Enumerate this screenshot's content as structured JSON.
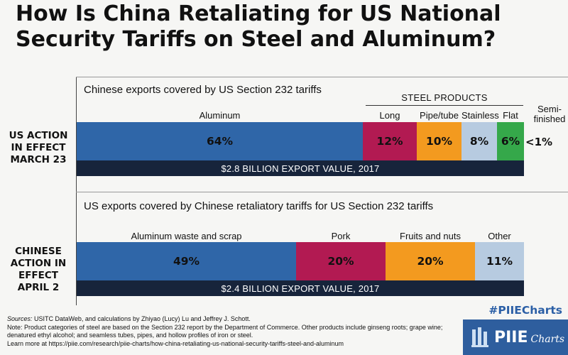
{
  "title": {
    "line1": "How Is China Retaliating for US National",
    "line2": "Security Tariffs on Steel and Aluminum?"
  },
  "chart_data": [
    {
      "type": "bar",
      "orientation": "horizontal-stacked",
      "title": "Chinese exports covered by US Section 232 tariffs",
      "row_label": "US ACTION IN EFFECT MARCH 23",
      "group_label": "STEEL PRODUCTS",
      "categories": [
        "Aluminum",
        "Long",
        "Pipe/tube",
        "Stainless",
        "Flat",
        "Semi-finished"
      ],
      "values": [
        64,
        12,
        10,
        8,
        6,
        0.5
      ],
      "value_labels": [
        "64%",
        "12%",
        "10%",
        "8%",
        "6%",
        "<1%"
      ],
      "colors": [
        "#2f66a8",
        "#b21a52",
        "#f39a1f",
        "#b7cbe0",
        "#35a84a",
        "#f6f6f4"
      ],
      "total_label": "$2.8 BILLION EXPORT VALUE, 2017"
    },
    {
      "type": "bar",
      "orientation": "horizontal-stacked",
      "title": "US exports covered by Chinese retaliatory tariffs for US Section 232 tariffs",
      "row_label": "CHINESE ACTION IN EFFECT APRIL 2",
      "categories": [
        "Aluminum waste and scrap",
        "Pork",
        "Fruits and nuts",
        "Other"
      ],
      "values": [
        49,
        20,
        20,
        11
      ],
      "value_labels": [
        "49%",
        "20%",
        "20%",
        "11%"
      ],
      "colors": [
        "#2f66a8",
        "#b21a52",
        "#f39a1f",
        "#b7cbe0"
      ],
      "total_label": "$2.4 BILLION EXPORT VALUE, 2017"
    }
  ],
  "chart1_rowlabel": [
    "US ACTION",
    "IN EFFECT",
    "MARCH 23"
  ],
  "chart2_rowlabel": [
    "CHINESE",
    "ACTION IN",
    "EFFECT",
    "APRIL 2"
  ],
  "semi_label": [
    "Semi-",
    "finished"
  ],
  "footnote": {
    "sources_label": "Sources:",
    "sources": "USITC DataWeb, and calculations by Zhiyao (Lucy) Lu and Jeffrey J. Schott.",
    "note": "Note: Product categories of steel are based on the Section 232 report by the Department of Commerce. Other products include ginseng roots; grape wine; denatured ethyl alcohol; and seamless tubes, pipes, and hollow profiles of iron or steel.",
    "learn": "Learn more at https://piie.com/research/piie-charts/how-china-retaliating-us-national-security-tariffs-steel-and-aluminum"
  },
  "hashtag": "#PIIECharts",
  "logo": {
    "name": "PIIE",
    "sub": "Charts"
  }
}
